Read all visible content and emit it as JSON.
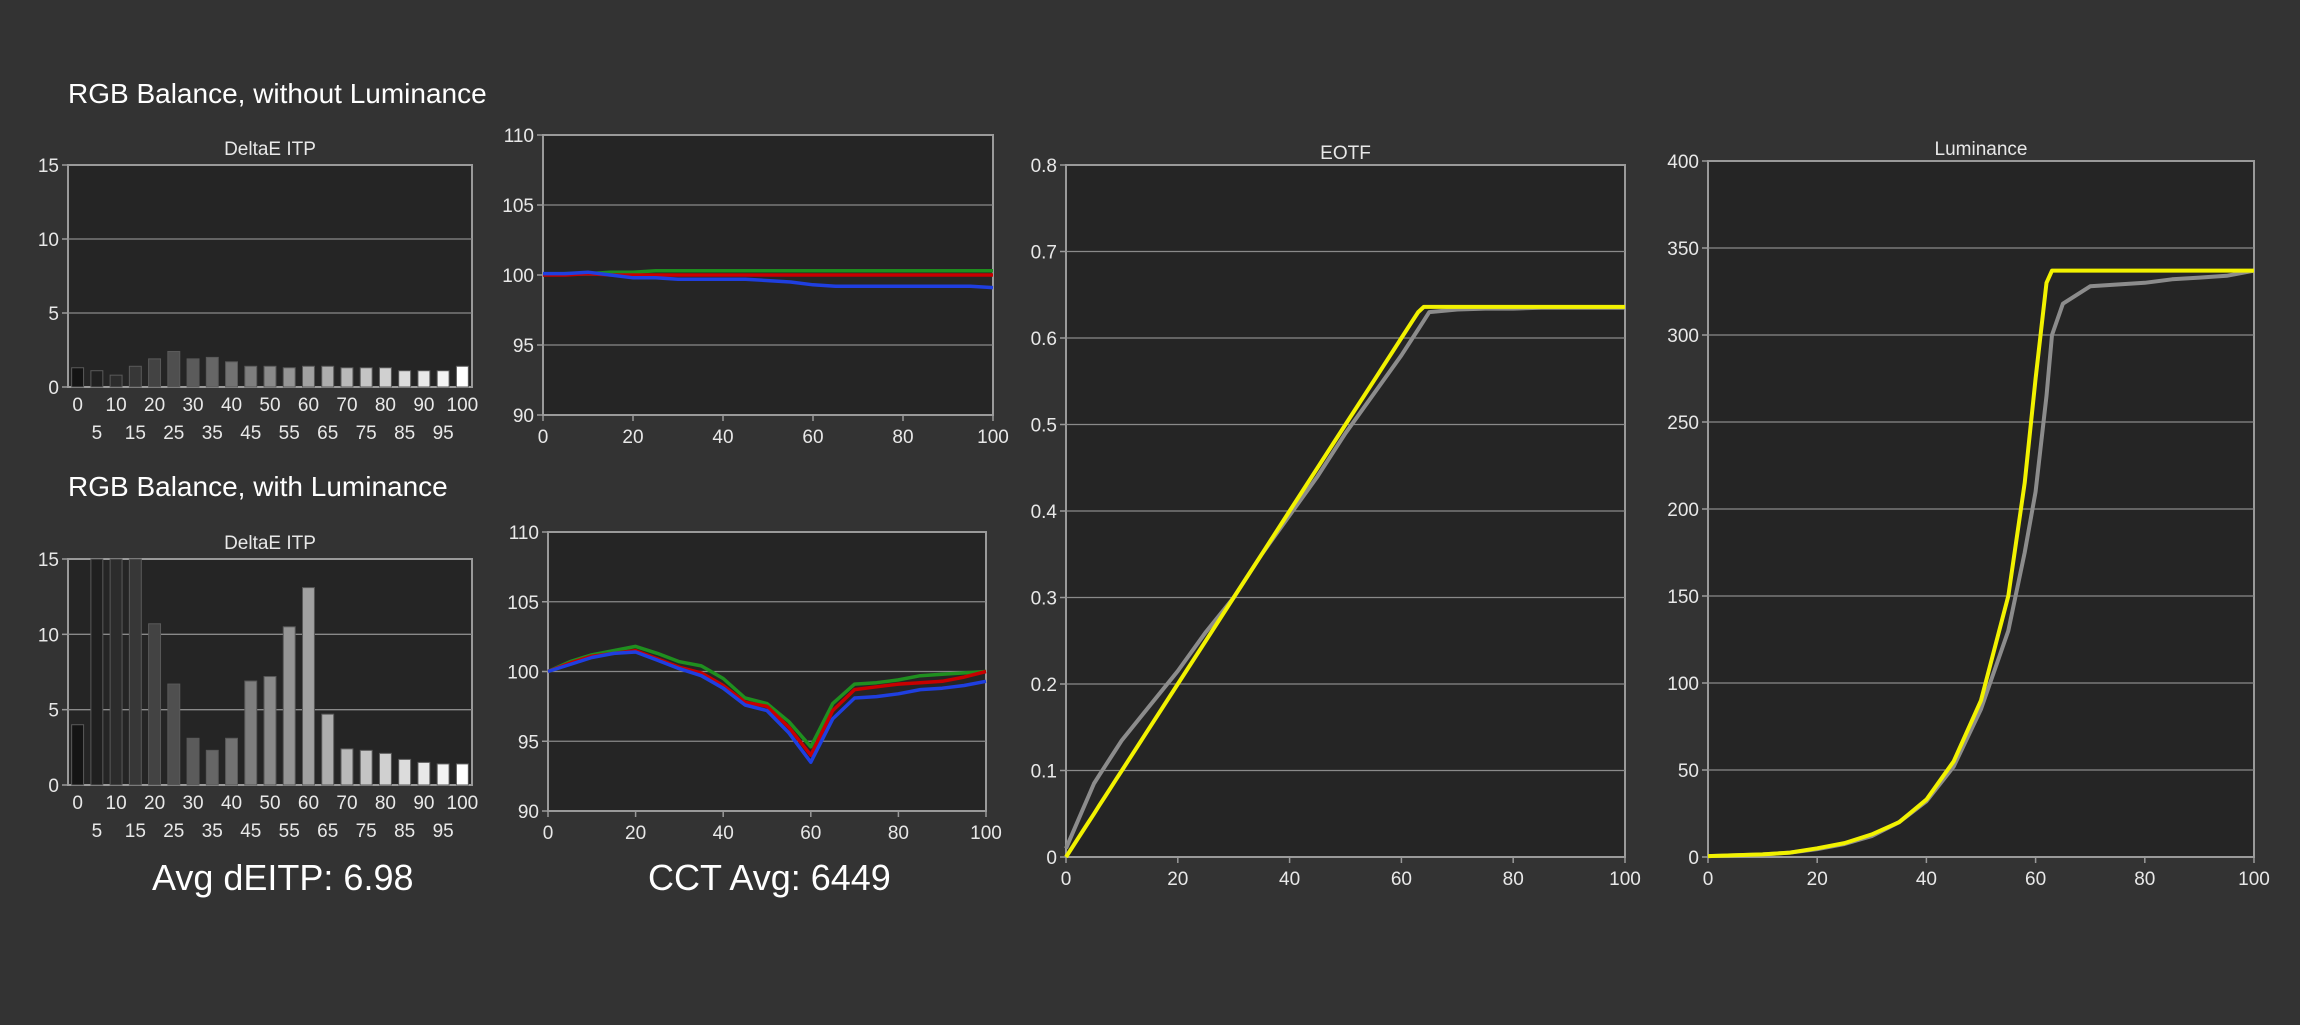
{
  "colors": {
    "background": "#333333",
    "plot_bg": "#252525",
    "grid": "#8a8a8a",
    "frame": "#9a9a9a",
    "red": "#c80000",
    "green": "#1f8f1f",
    "blue": "#1f3fe0",
    "yellow": "#f2f200",
    "gray": "#8c8c8c"
  },
  "sections": {
    "without_lum": "RGB Balance, without Luminance",
    "with_lum": "RGB Balance, with Luminance"
  },
  "stats": {
    "avg_deitp": "Avg dEITP: 6.98",
    "cct_avg": "CCT Avg: 6449"
  },
  "chart_data": [
    {
      "id": "deltae_top",
      "type": "bar",
      "title": "DeltaE ITP",
      "categories": [
        "0",
        "5",
        "10",
        "15",
        "20",
        "25",
        "30",
        "35",
        "40",
        "45",
        "50",
        "55",
        "60",
        "65",
        "70",
        "75",
        "80",
        "85",
        "90",
        "95",
        "100"
      ],
      "values": [
        1.3,
        1.1,
        0.8,
        1.4,
        1.9,
        2.4,
        1.9,
        2.0,
        1.7,
        1.4,
        1.4,
        1.3,
        1.4,
        1.4,
        1.3,
        1.3,
        1.3,
        1.1,
        1.1,
        1.1,
        1.4
      ],
      "ylim": [
        0,
        15
      ],
      "yticks": [
        0,
        5,
        10,
        15
      ]
    },
    {
      "id": "rgb_top",
      "type": "line",
      "x": [
        0,
        5,
        10,
        15,
        20,
        25,
        30,
        35,
        40,
        45,
        50,
        55,
        60,
        65,
        70,
        75,
        80,
        85,
        90,
        95,
        100
      ],
      "series": [
        {
          "color": "red",
          "values": [
            100,
            100,
            100.1,
            100,
            100,
            100,
            100,
            100,
            100,
            100,
            100,
            100,
            100,
            100,
            100,
            100,
            100,
            100,
            100,
            100,
            100
          ]
        },
        {
          "color": "green",
          "values": [
            100,
            100.1,
            100.1,
            100.2,
            100.2,
            100.3,
            100.3,
            100.3,
            100.3,
            100.3,
            100.3,
            100.3,
            100.3,
            100.3,
            100.3,
            100.3,
            100.3,
            100.3,
            100.3,
            100.3,
            100.3
          ]
        },
        {
          "color": "blue",
          "values": [
            100.1,
            100.1,
            100.2,
            100,
            99.8,
            99.8,
            99.7,
            99.7,
            99.7,
            99.7,
            99.6,
            99.5,
            99.3,
            99.2,
            99.2,
            99.2,
            99.2,
            99.2,
            99.2,
            99.2,
            99.1
          ]
        }
      ],
      "xlim": [
        0,
        100
      ],
      "ylim": [
        90,
        110
      ],
      "xticks": [
        0,
        20,
        40,
        60,
        80,
        100
      ],
      "yticks": [
        90,
        95,
        100,
        105,
        110
      ]
    },
    {
      "id": "deltae_bottom",
      "type": "bar",
      "title": "DeltaE ITP",
      "categories": [
        "0",
        "5",
        "10",
        "15",
        "20",
        "25",
        "30",
        "35",
        "40",
        "45",
        "50",
        "55",
        "60",
        "65",
        "70",
        "75",
        "80",
        "85",
        "90",
        "95",
        "100"
      ],
      "values": [
        4.0,
        15,
        15,
        15,
        10.7,
        6.7,
        3.1,
        2.3,
        3.1,
        6.9,
        7.2,
        10.5,
        13.1,
        4.7,
        2.4,
        2.3,
        2.1,
        1.7,
        1.5,
        1.4,
        1.4
      ],
      "ylim": [
        0,
        15
      ],
      "yticks": [
        0,
        5,
        10,
        15
      ]
    },
    {
      "id": "rgb_bottom",
      "type": "line",
      "x": [
        0,
        5,
        10,
        15,
        20,
        25,
        30,
        35,
        40,
        45,
        50,
        55,
        60,
        65,
        70,
        75,
        80,
        85,
        90,
        95,
        100
      ],
      "series": [
        {
          "color": "red",
          "values": [
            100,
            100.6,
            101.1,
            101.3,
            101.5,
            100.9,
            100.3,
            99.9,
            99,
            97.8,
            97.5,
            96,
            94,
            97.2,
            98.7,
            98.9,
            99.1,
            99.2,
            99.3,
            99.6,
            100
          ]
        },
        {
          "color": "green",
          "values": [
            100,
            100.7,
            101.2,
            101.5,
            101.8,
            101.3,
            100.7,
            100.4,
            99.5,
            98.1,
            97.7,
            96.4,
            94.6,
            97.7,
            99.1,
            99.2,
            99.4,
            99.7,
            99.8,
            99.9,
            100
          ]
        },
        {
          "color": "blue",
          "values": [
            100,
            100.5,
            101,
            101.3,
            101.4,
            100.8,
            100.2,
            99.7,
            98.8,
            97.6,
            97.2,
            95.6,
            93.5,
            96.6,
            98.1,
            98.2,
            98.4,
            98.7,
            98.8,
            99,
            99.3
          ]
        }
      ],
      "xlim": [
        0,
        100
      ],
      "ylim": [
        90,
        110
      ],
      "xticks": [
        0,
        20,
        40,
        60,
        80,
        100
      ],
      "yticks": [
        90,
        95,
        100,
        105,
        110
      ]
    },
    {
      "id": "eotf",
      "type": "line",
      "title": "EOTF",
      "x": [
        0,
        1,
        2,
        3,
        4,
        5,
        6,
        7,
        8,
        9,
        10,
        15,
        20,
        25,
        30,
        35,
        40,
        45,
        50,
        55,
        60,
        62,
        63,
        64,
        65,
        70,
        75,
        80,
        85,
        90,
        95,
        100
      ],
      "series": [
        {
          "color": "yellow",
          "values": [
            0,
            0.01,
            0.02,
            0.03,
            0.04,
            0.05,
            0.06,
            0.07,
            0.08,
            0.09,
            0.1,
            0.15,
            0.2,
            0.25,
            0.3,
            0.35,
            0.4,
            0.45,
            0.5,
            0.55,
            0.6,
            0.62,
            0.63,
            0.636,
            0.636,
            0.636,
            0.636,
            0.636,
            0.636,
            0.636,
            0.636,
            0.636
          ]
        },
        {
          "color": "gray",
          "values": [
            0.01,
            0.025,
            0.04,
            0.055,
            0.07,
            0.085,
            0.095,
            0.105,
            0.115,
            0.125,
            0.135,
            0.175,
            0.215,
            0.26,
            0.3,
            0.35,
            0.395,
            0.44,
            0.49,
            0.535,
            0.58,
            0.6,
            0.61,
            0.62,
            0.63,
            0.633,
            0.634,
            0.634,
            0.635,
            0.635,
            0.635,
            0.635
          ]
        }
      ],
      "xlim": [
        0,
        100
      ],
      "ylim": [
        0,
        0.8
      ],
      "xticks": [
        0,
        20,
        40,
        60,
        80,
        100
      ],
      "yticks": [
        0,
        0.1,
        0.2,
        0.3,
        0.4,
        0.5,
        0.6,
        0.7,
        0.8
      ]
    },
    {
      "id": "luminance",
      "type": "line",
      "title": "Luminance",
      "x": [
        0,
        5,
        10,
        15,
        20,
        25,
        30,
        35,
        40,
        45,
        50,
        55,
        58,
        60,
        62,
        63,
        65,
        70,
        75,
        80,
        85,
        90,
        95,
        100
      ],
      "series": [
        {
          "color": "yellow",
          "values": [
            0.5,
            1,
            1.5,
            2.5,
            5,
            8,
            13,
            20,
            33,
            55,
            90,
            150,
            215,
            275,
            330,
            337,
            337,
            337,
            337,
            337,
            337,
            337,
            337,
            337
          ]
        },
        {
          "color": "gray",
          "values": [
            0.5,
            1,
            1.5,
            2.5,
            4.5,
            7.5,
            12,
            20,
            32,
            52,
            85,
            130,
            175,
            210,
            265,
            300,
            318,
            328,
            329,
            330,
            332,
            333,
            334,
            337
          ]
        }
      ],
      "xlim": [
        0,
        100
      ],
      "ylim": [
        0,
        400
      ],
      "xticks": [
        0,
        20,
        40,
        60,
        80,
        100
      ],
      "yticks": [
        0,
        50,
        100,
        150,
        200,
        250,
        300,
        350,
        400
      ]
    }
  ]
}
